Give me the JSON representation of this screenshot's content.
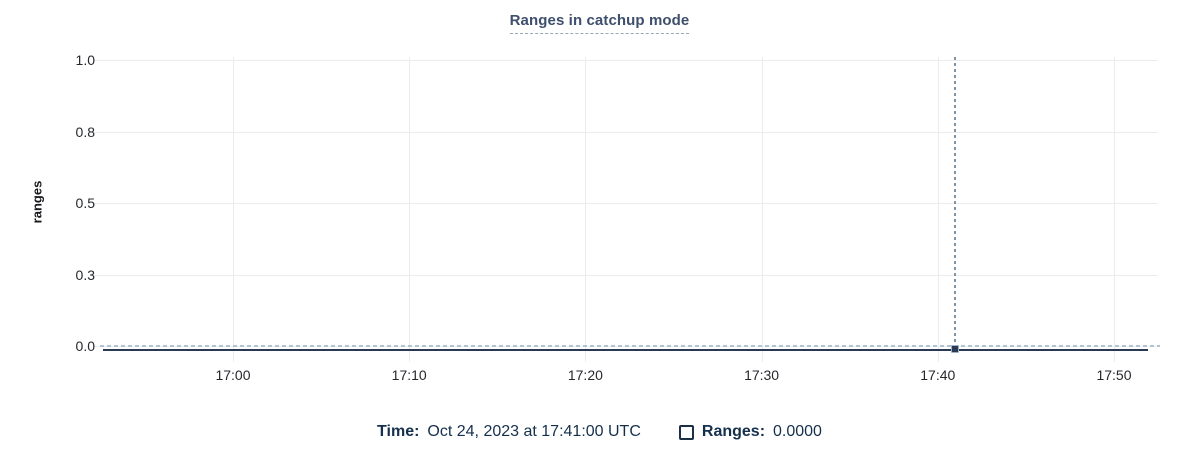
{
  "chart": {
    "title": "Ranges in catchup mode",
    "ylabel": "ranges"
  },
  "legend": {
    "time_label": "Time:",
    "time_value": "Oct 24, 2023 at 17:41:00 UTC",
    "series_label": "Ranges:",
    "series_value": "0.0000",
    "series_checkbox_checked": false
  },
  "chart_data": {
    "type": "line",
    "title": "Ranges in catchup mode",
    "xlabel": "",
    "ylabel": "ranges",
    "x_ticks": [
      "17:00",
      "17:10",
      "17:20",
      "17:30",
      "17:40",
      "17:50"
    ],
    "y_tick_labels": [
      "1.0",
      "0.8",
      "0.5",
      "0.3",
      "0.0"
    ],
    "y_tick_values": [
      1.0,
      0.75,
      0.5,
      0.25,
      0.0
    ],
    "ylim": [
      0,
      1.0
    ],
    "x_axis_range_estimate": [
      "16:52",
      "17:52"
    ],
    "grid": true,
    "legend_position": "bottom-center",
    "series": [
      {
        "name": "Ranges",
        "constant_value": 0,
        "values_description": "flat line at 0 across the entire visible time range"
      }
    ],
    "hover": {
      "time_tick": "17:41",
      "minutes_after_1700": 41,
      "time_full": "Oct 24, 2023 at 17:41:00 UTC",
      "value": "0.0000",
      "point_y_value": 0
    }
  },
  "colors": {
    "title": "#3e4e6d",
    "title_underline": "#9aa5b8",
    "legend_text": "#15304c",
    "axis_text": "#26282d",
    "grid": "#ececee",
    "series_line": "#2b3a54",
    "hover_line": "#b4c3d2",
    "crosshair": "#7f95a6",
    "background": "#ffffff"
  }
}
